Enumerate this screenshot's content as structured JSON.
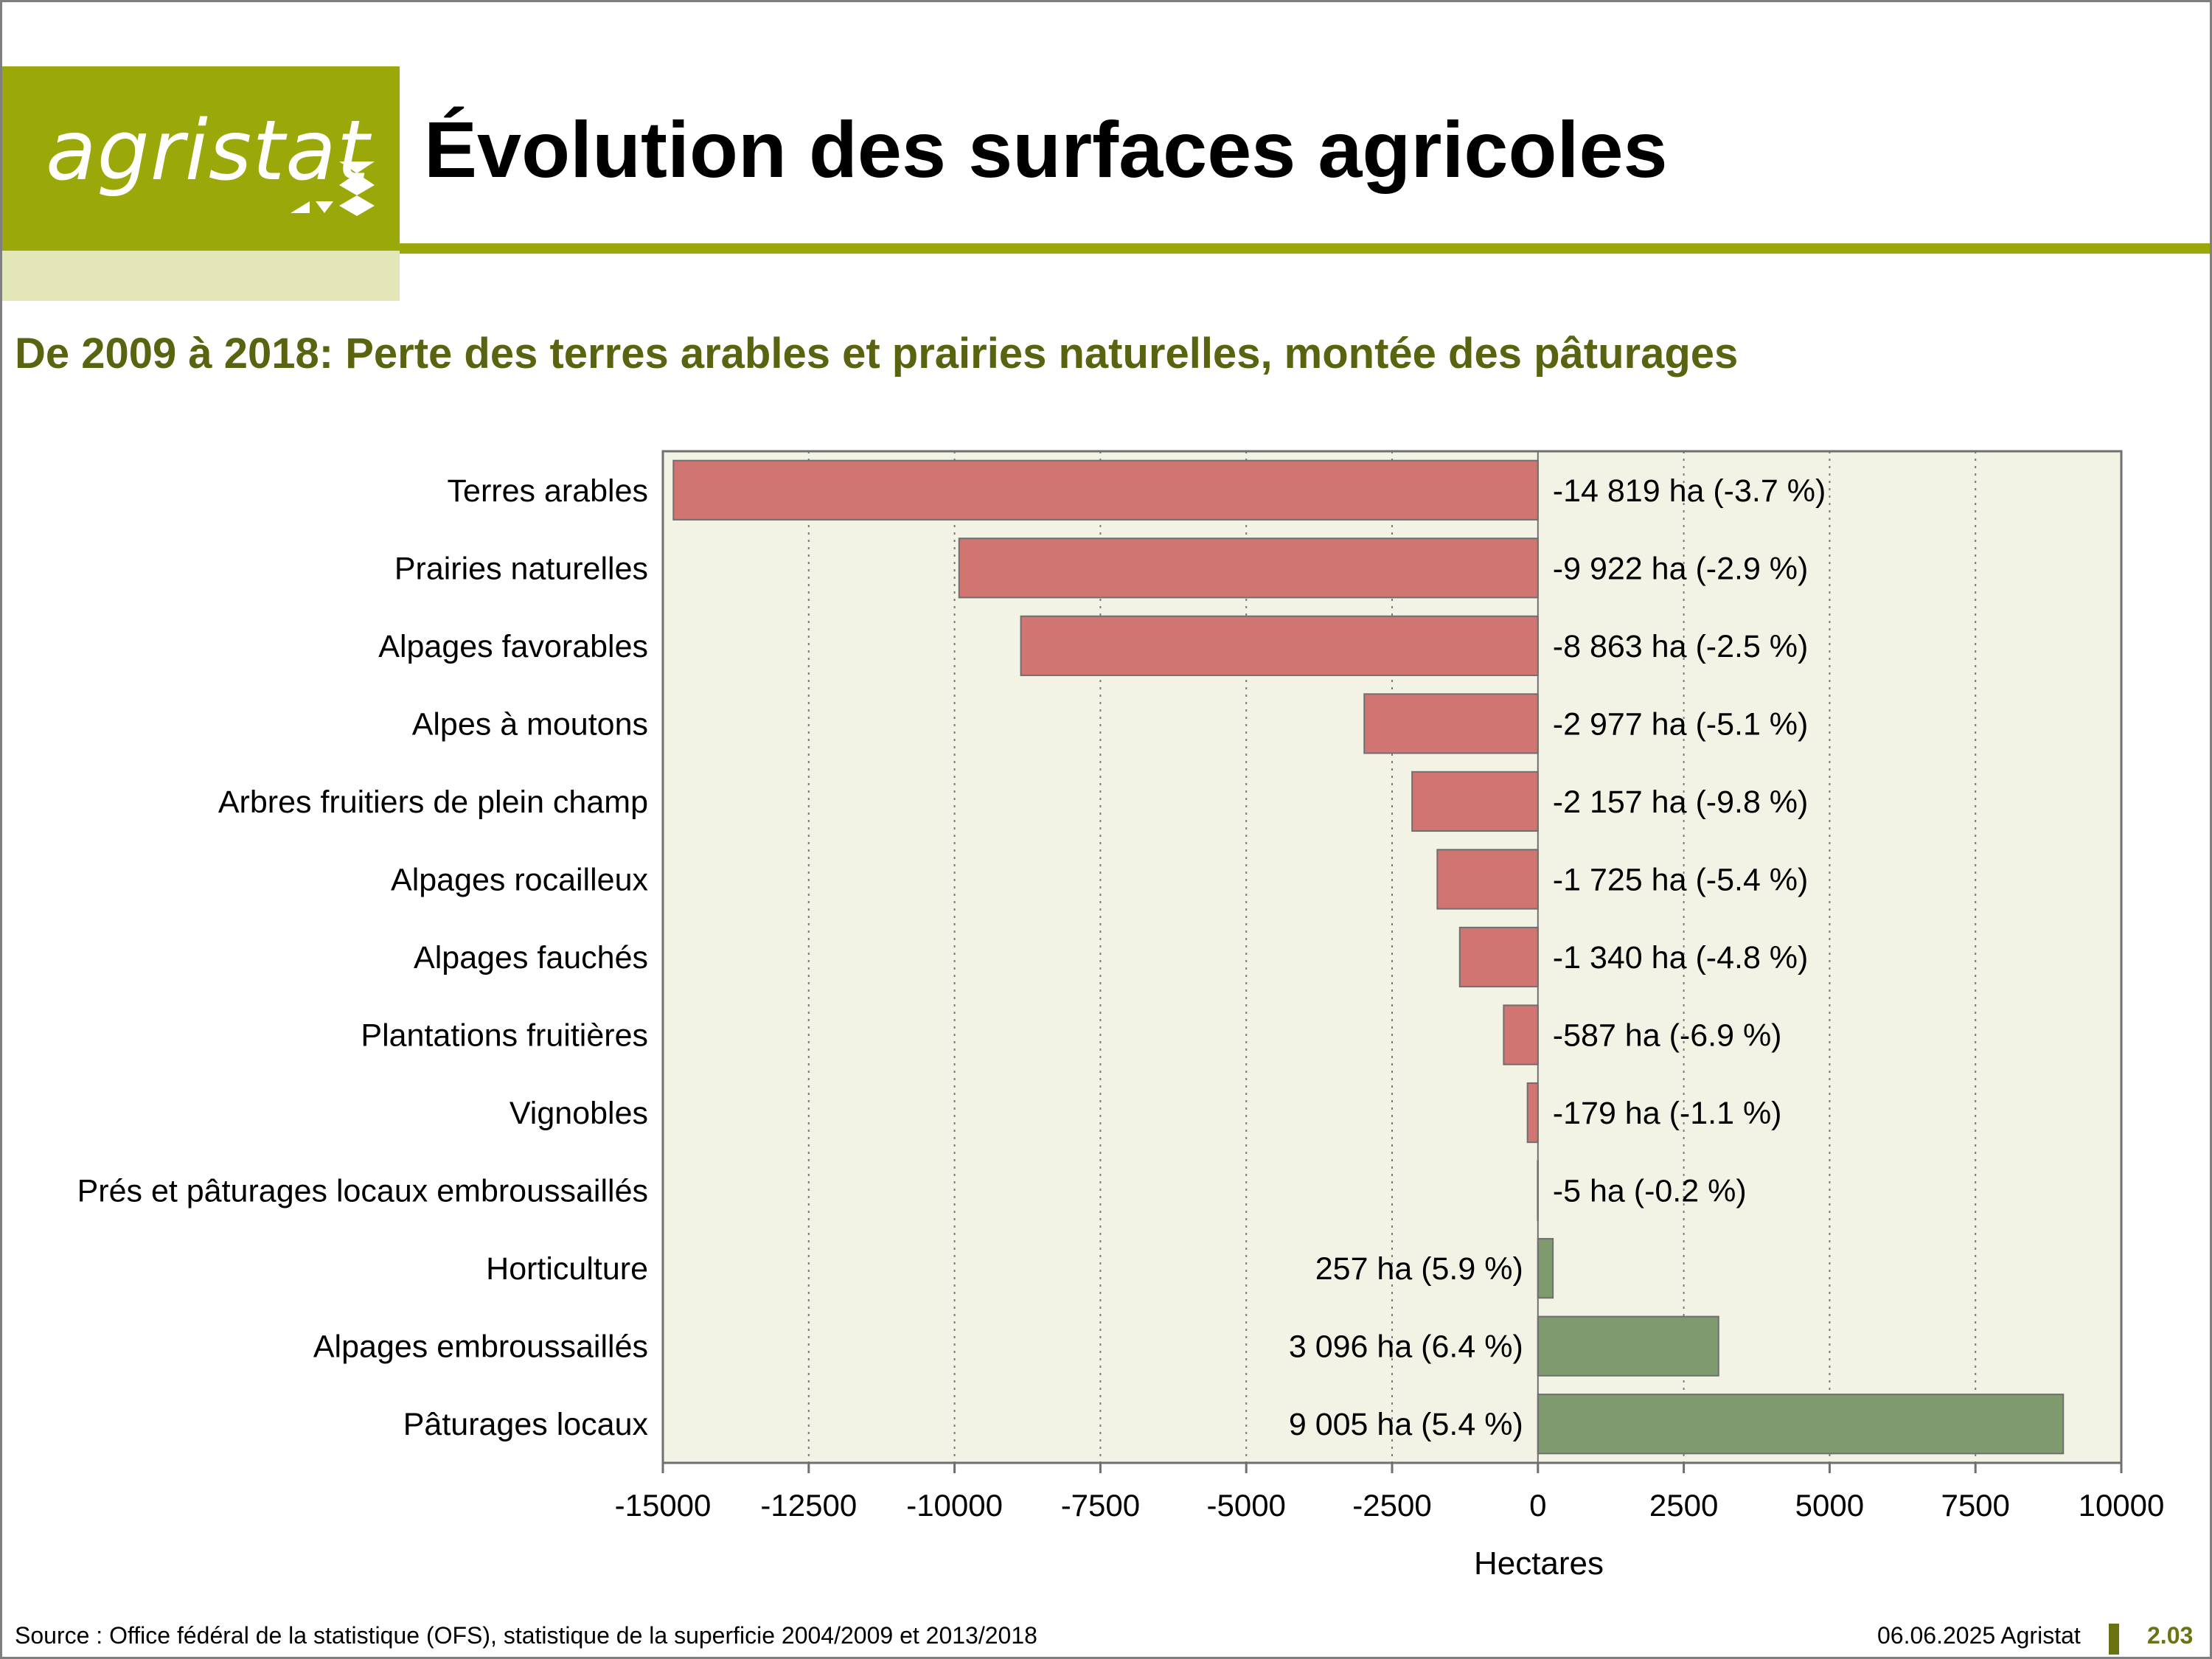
{
  "header": {
    "logo_text": "agristat",
    "title": "Évolution des surfaces agricoles",
    "subtitle": "De 2009 à 2018: Perte des terres arables et prairies naturelles, montée des pâturages"
  },
  "footer": {
    "source": "Source : Office fédéral de la statistique (OFS), statistique de la superficie 2004/2009 et 2013/2018",
    "date": "06.06.2025 Agristat",
    "page": "2.03"
  },
  "colors": {
    "accent": "#9aa80a",
    "negative": "#d07571",
    "positive": "#7f9a6f",
    "plot_background": "#f2f3e4"
  },
  "chart_data": {
    "type": "bar",
    "orientation": "horizontal",
    "xlabel": "Hectares",
    "xlim": [
      -15000,
      10000
    ],
    "xticks": [
      -15000,
      -12500,
      -10000,
      -7500,
      -5000,
      -2500,
      0,
      2500,
      5000,
      7500,
      10000
    ],
    "grid": "vertical dotted",
    "categories": [
      "Terres arables",
      "Prairies naturelles",
      "Alpages favorables",
      "Alpes à moutons",
      "Arbres fruitiers de plein champ",
      "Alpages rocailleux",
      "Alpages fauchés",
      "Plantations fruitières",
      "Vignobles",
      "Prés et pâturages locaux embroussaillés",
      "Horticulture",
      "Alpages embroussaillés",
      "Pâturages locaux"
    ],
    "values": [
      -14819,
      -9922,
      -8863,
      -2977,
      -2157,
      -1725,
      -1340,
      -587,
      -179,
      -5,
      257,
      3096,
      9005
    ],
    "data_labels": [
      "-14 819 ha (-3.7 %)",
      "-9 922 ha (-2.9 %)",
      "-8 863 ha (-2.5 %)",
      "-2 977 ha (-5.1 %)",
      "-2 157 ha (-9.8 %)",
      "-1 725 ha (-5.4 %)",
      "-1 340 ha (-4.8 %)",
      "-587 ha (-6.9 %)",
      "-179 ha (-1.1 %)",
      "-5 ha (-0.2 %)",
      "257 ha (5.9 %)",
      "3 096 ha (6.4 %)",
      "9 005 ha (5.4 %)"
    ]
  }
}
